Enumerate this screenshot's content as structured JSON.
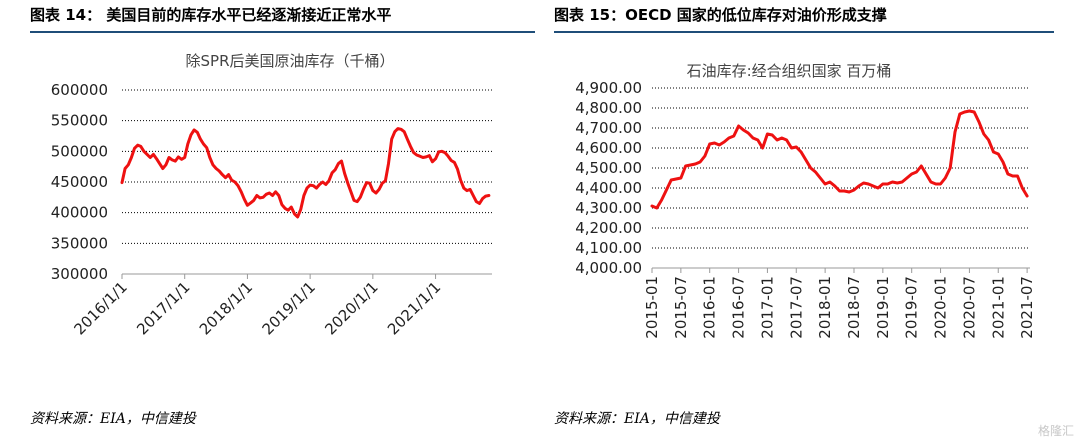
{
  "left_panel": {
    "figure_title": "图表 14： 美国目前的库存水平已经逐渐接近正常水平",
    "source": "资料来源：EIA，中信建投"
  },
  "right_panel": {
    "figure_title": "图表 15：OECD 国家的低位库存对油价形成支撑",
    "source": "资料来源：EIA，中信建投"
  },
  "watermark": "格隆汇",
  "colors": {
    "line": "#ee1111",
    "grid": "#000000",
    "rule": "#1f4e79"
  },
  "chart_data": [
    {
      "type": "line",
      "title": "除SPR后美国原油库存（千桶）",
      "xlabel": "",
      "ylabel": "",
      "ylim": [
        300000,
        600000
      ],
      "yticks": [
        300000,
        350000,
        400000,
        450000,
        500000,
        550000,
        600000
      ],
      "ytick_labels": [
        "300000",
        "350000",
        "400000",
        "450000",
        "500000",
        "550000",
        "600000"
      ],
      "xlim": [
        2016.0,
        2021.9
      ],
      "xticks": [
        2016,
        2017,
        2018,
        2019,
        2020,
        2021
      ],
      "xtick_labels": [
        "2016/1/1",
        "2017/1/1",
        "2018/1/1",
        "2019/1/1",
        "2020/1/1",
        "2021/1/1"
      ],
      "grid": true,
      "series": [
        {
          "x": [
            2016.0,
            2016.05,
            2016.1,
            2016.15,
            2016.2,
            2016.25,
            2016.3,
            2016.35,
            2016.4,
            2016.45,
            2016.5,
            2016.55,
            2016.6,
            2016.65,
            2016.7,
            2016.75,
            2016.8,
            2016.85,
            2016.9,
            2016.95,
            2017.0,
            2017.05,
            2017.1,
            2017.15,
            2017.2,
            2017.25,
            2017.3,
            2017.35,
            2017.4,
            2017.45,
            2017.5,
            2017.55,
            2017.6,
            2017.65,
            2017.7,
            2017.75,
            2017.8,
            2017.85,
            2017.9,
            2017.95,
            2018.0,
            2018.05,
            2018.1,
            2018.15,
            2018.2,
            2018.25,
            2018.3,
            2018.35,
            2018.4,
            2018.45,
            2018.5,
            2018.55,
            2018.6,
            2018.65,
            2018.7,
            2018.75,
            2018.8,
            2018.85,
            2018.9,
            2018.95,
            2019.0,
            2019.05,
            2019.1,
            2019.15,
            2019.2,
            2019.25,
            2019.3,
            2019.35,
            2019.4,
            2019.45,
            2019.5,
            2019.55,
            2019.6,
            2019.65,
            2019.7,
            2019.75,
            2019.8,
            2019.85,
            2019.9,
            2019.95,
            2020.0,
            2020.05,
            2020.1,
            2020.15,
            2020.2,
            2020.25,
            2020.3,
            2020.35,
            2020.4,
            2020.45,
            2020.5,
            2020.55,
            2020.6,
            2020.65,
            2020.7,
            2020.75,
            2020.8,
            2020.85,
            2020.9,
            2020.95,
            2021.0,
            2021.05,
            2021.1,
            2021.15,
            2021.2,
            2021.25,
            2021.3,
            2021.35,
            2021.4,
            2021.45,
            2021.5,
            2021.55,
            2021.6,
            2021.65,
            2021.7,
            2021.75,
            2021.8,
            2021.85
          ],
          "values": [
            449000,
            472000,
            478000,
            490000,
            505000,
            510000,
            508000,
            500000,
            495000,
            490000,
            495000,
            488000,
            480000,
            472000,
            478000,
            490000,
            486000,
            484000,
            491000,
            487000,
            490000,
            512000,
            527000,
            535000,
            531000,
            520000,
            512000,
            506000,
            490000,
            478000,
            472000,
            468000,
            462000,
            457000,
            462000,
            453000,
            450000,
            444000,
            434000,
            422000,
            412000,
            416000,
            420000,
            428000,
            424000,
            425000,
            430000,
            432000,
            428000,
            434000,
            428000,
            413000,
            407000,
            404000,
            409000,
            398000,
            393000,
            405000,
            428000,
            440000,
            445000,
            444000,
            440000,
            446000,
            450000,
            446000,
            452000,
            465000,
            470000,
            480000,
            484000,
            464000,
            448000,
            434000,
            420000,
            418000,
            425000,
            438000,
            449000,
            448000,
            436000,
            432000,
            438000,
            448000,
            452000,
            480000,
            520000,
            532000,
            537000,
            536000,
            532000,
            520000,
            508000,
            498000,
            494000,
            492000,
            490000,
            491000,
            493000,
            483000,
            488000,
            499000,
            500000,
            498000,
            492000,
            485000,
            482000,
            471000,
            453000,
            440000,
            436000,
            438000,
            428000,
            418000,
            415000,
            423000,
            427000,
            428000
          ]
        }
      ]
    },
    {
      "type": "line",
      "title": "石油库存:经合组织国家 百万桶",
      "xlabel": "",
      "ylabel": "",
      "ylim": [
        4000,
        4900
      ],
      "yticks": [
        4000,
        4100,
        4200,
        4300,
        4400,
        4500,
        4600,
        4700,
        4800,
        4900
      ],
      "ytick_labels": [
        "4,000.00",
        "4,100.00",
        "4,200.00",
        "4,300.00",
        "4,400.00",
        "4,500.00",
        "4,600.00",
        "4,700.00",
        "4,800.00",
        "4,900.00"
      ],
      "xlim": [
        2015.0,
        2021.55
      ],
      "xticks": [
        2015.0,
        2015.5,
        2016.0,
        2016.5,
        2017.0,
        2017.5,
        2018.0,
        2018.5,
        2019.0,
        2019.5,
        2020.0,
        2020.5,
        2021.0,
        2021.5
      ],
      "xtick_labels": [
        "2015-01",
        "2015-07",
        "2016-01",
        "2016-07",
        "2017-01",
        "2017-07",
        "2018-01",
        "2018-07",
        "2019-01",
        "2019-07",
        "2020-01",
        "2020-07",
        "2021-01",
        "2021-07"
      ],
      "grid": true,
      "series": [
        {
          "x": [
            2015.0,
            2015.083,
            2015.167,
            2015.25,
            2015.333,
            2015.417,
            2015.5,
            2015.583,
            2015.667,
            2015.75,
            2015.833,
            2015.917,
            2016.0,
            2016.083,
            2016.167,
            2016.25,
            2016.333,
            2016.417,
            2016.5,
            2016.583,
            2016.667,
            2016.75,
            2016.833,
            2016.917,
            2017.0,
            2017.083,
            2017.167,
            2017.25,
            2017.333,
            2017.417,
            2017.5,
            2017.583,
            2017.667,
            2017.75,
            2017.833,
            2017.917,
            2018.0,
            2018.083,
            2018.167,
            2018.25,
            2018.333,
            2018.417,
            2018.5,
            2018.583,
            2018.667,
            2018.75,
            2018.833,
            2018.917,
            2019.0,
            2019.083,
            2019.167,
            2019.25,
            2019.333,
            2019.417,
            2019.5,
            2019.583,
            2019.667,
            2019.75,
            2019.833,
            2019.917,
            2020.0,
            2020.083,
            2020.167,
            2020.25,
            2020.333,
            2020.417,
            2020.5,
            2020.583,
            2020.667,
            2020.75,
            2020.833,
            2020.917,
            2021.0,
            2021.083,
            2021.167,
            2021.25,
            2021.333,
            2021.417,
            2021.5
          ],
          "values": [
            4310,
            4300,
            4340,
            4390,
            4440,
            4445,
            4450,
            4510,
            4515,
            4520,
            4530,
            4560,
            4620,
            4625,
            4615,
            4630,
            4650,
            4660,
            4710,
            4690,
            4675,
            4650,
            4640,
            4600,
            4670,
            4665,
            4640,
            4650,
            4640,
            4600,
            4605,
            4580,
            4540,
            4500,
            4480,
            4450,
            4420,
            4430,
            4410,
            4385,
            4385,
            4380,
            4390,
            4410,
            4425,
            4420,
            4410,
            4400,
            4420,
            4420,
            4430,
            4425,
            4430,
            4450,
            4470,
            4480,
            4510,
            4470,
            4430,
            4420,
            4420,
            4450,
            4500,
            4680,
            4770,
            4780,
            4785,
            4780,
            4730,
            4670,
            4640,
            4580,
            4570,
            4530,
            4470,
            4460,
            4460,
            4400,
            4360
          ]
        }
      ]
    }
  ]
}
